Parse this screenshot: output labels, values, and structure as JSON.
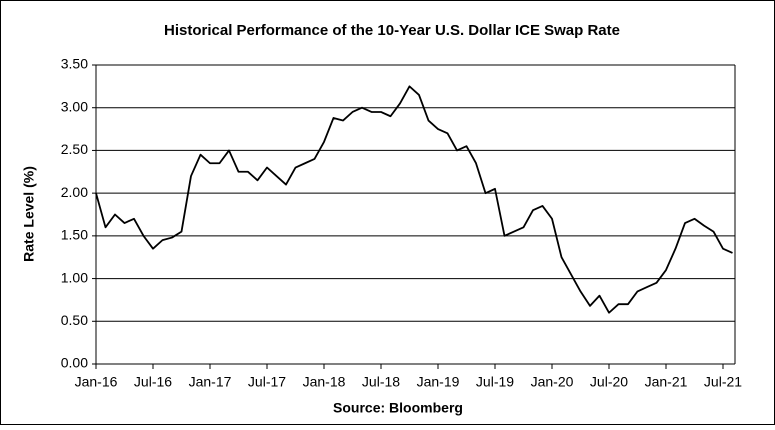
{
  "chart_data": {
    "type": "line",
    "title": "Historical Performance of the 10-Year U.S. Dollar ICE Swap Rate",
    "y_label": "Rate Level (%)",
    "x_label": "Source: Bloomberg",
    "categories": [
      "Jan-16",
      null,
      null,
      null,
      null,
      null,
      "Jul-16",
      null,
      null,
      null,
      null,
      null,
      "Jan-17",
      null,
      null,
      null,
      null,
      null,
      "Jul-17",
      null,
      null,
      null,
      null,
      null,
      "Jan-18",
      null,
      null,
      null,
      null,
      null,
      "Jul-18",
      null,
      null,
      null,
      null,
      null,
      "Jan-19",
      null,
      null,
      null,
      null,
      null,
      "Jul-19",
      null,
      null,
      null,
      null,
      null,
      "Jan-20",
      null,
      null,
      null,
      null,
      null,
      "Jul-20",
      null,
      null,
      null,
      null,
      null,
      "Jan-21",
      null,
      null,
      null,
      null,
      null,
      "Jul-21",
      null
    ],
    "series": [
      {
        "name": "10-Year USD ICE Swap Rate",
        "color": "#000000",
        "values": [
          2.0,
          1.6,
          1.75,
          1.65,
          1.7,
          1.5,
          1.35,
          1.45,
          1.48,
          1.55,
          2.2,
          2.45,
          2.35,
          2.35,
          2.5,
          2.25,
          2.25,
          2.15,
          2.3,
          2.2,
          2.1,
          2.3,
          2.35,
          2.4,
          2.6,
          2.88,
          2.85,
          2.95,
          3.0,
          2.95,
          2.95,
          2.9,
          3.05,
          3.25,
          3.15,
          2.85,
          2.75,
          2.7,
          2.5,
          2.55,
          2.35,
          2.0,
          2.05,
          1.5,
          1.55,
          1.6,
          1.8,
          1.85,
          1.7,
          1.25,
          1.05,
          0.85,
          0.68,
          0.8,
          0.6,
          0.7,
          0.7,
          0.85,
          0.9,
          0.95,
          1.1,
          1.35,
          1.65,
          1.7,
          1.62,
          1.55,
          1.35,
          1.3
        ]
      }
    ],
    "ylim": [
      0,
      3.5
    ],
    "yticks": [
      {
        "value": 0,
        "label": "0.00"
      },
      {
        "value": 0.5,
        "label": "0.50"
      },
      {
        "value": 1,
        "label": "1.00"
      },
      {
        "value": 1.5,
        "label": "1.50"
      },
      {
        "value": 2,
        "label": "2.00"
      },
      {
        "value": 2.5,
        "label": "2.50"
      },
      {
        "value": 3,
        "label": "3.00"
      },
      {
        "value": 3.5,
        "label": "3.50"
      }
    ],
    "grid": true
  }
}
